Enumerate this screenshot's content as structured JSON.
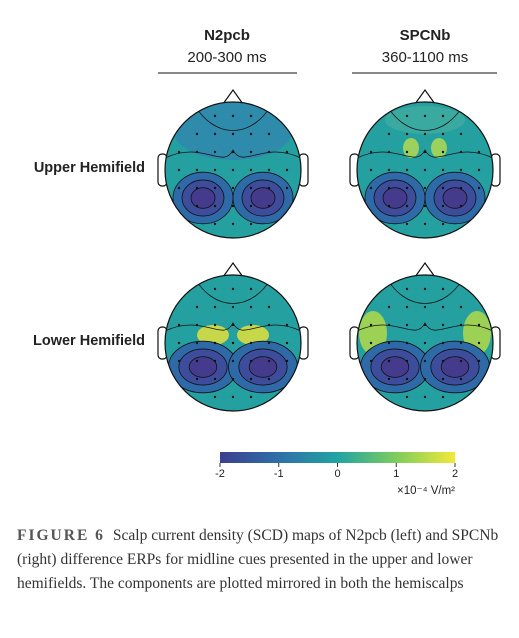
{
  "figure": {
    "columns": [
      {
        "title": "N2pcb",
        "subtitle": "200-300 ms"
      },
      {
        "title": "SPCNb",
        "subtitle": "360-1100 ms"
      }
    ],
    "rows": [
      "Upper Hemifield",
      "Lower Hemifield"
    ],
    "colorbar": {
      "lim": [
        -2,
        2
      ],
      "ticks": [
        -2,
        -1,
        0,
        1,
        2
      ],
      "unit": "×10⁻⁴ V/m²"
    },
    "caption": {
      "label": "FIGURE 6",
      "text": "Scalp current density (SCD) maps of N2pcb (left) and SPCNb (right) difference ERPs for midline cues presented in the upper and lower hemifields. The components are plotted mirrored in both the hemiscalps"
    }
  }
}
